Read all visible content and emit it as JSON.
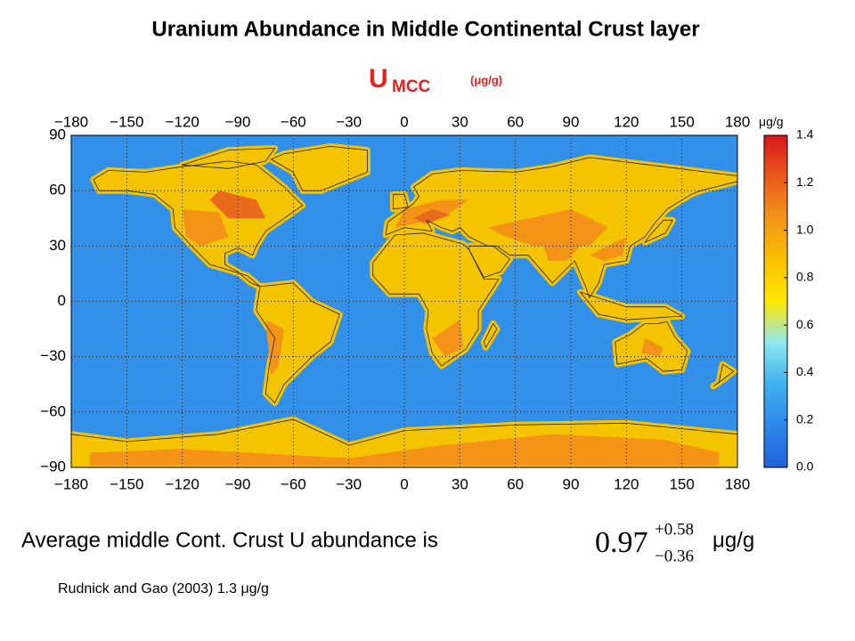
{
  "title": "Uranium Abundance in Middle Continental Crust layer",
  "map_label": {
    "symbol": "U",
    "subscript": "MCC",
    "unit": "(μg/g)"
  },
  "chart_data": {
    "type": "heatmap",
    "xlim": [
      -180,
      180
    ],
    "ylim": [
      -90,
      90
    ],
    "xticks": [
      {
        "value": -180,
        "label": "−180"
      },
      {
        "value": -150,
        "label": "−150"
      },
      {
        "value": -120,
        "label": "−120"
      },
      {
        "value": -90,
        "label": "−90"
      },
      {
        "value": -60,
        "label": "−60"
      },
      {
        "value": -30,
        "label": "−30"
      },
      0,
      30,
      60,
      90,
      120,
      150,
      180
    ],
    "yticks": [
      {
        "value": -90,
        "label": "−90"
      },
      {
        "value": -60,
        "label": "−60"
      },
      {
        "value": -30,
        "label": "−30"
      },
      0,
      30,
      60,
      90
    ],
    "grid": true,
    "colorbar": {
      "label": "μg/g",
      "lim": [
        0,
        1.4
      ],
      "ticks": [
        {
          "value": 0,
          "label": "0.0"
        },
        0.2,
        0.4,
        0.6,
        0.8,
        {
          "value": 1,
          "label": "1.0"
        },
        1.2,
        1.4
      ],
      "colors": [
        "#1e62d8",
        "#2f86ea",
        "#3fb0ee",
        "#8fe6f0",
        "#ffe800",
        "#f9c000",
        "#f39419",
        "#ea5a1c",
        "#d8141c"
      ]
    }
  },
  "statement": {
    "text": "Average middle Cont. Crust U abundance is",
    "value": 0.97,
    "upper_error": "+0.58",
    "lower_error": "−0.36",
    "unit": "μg/g"
  },
  "reference": "Rudnick and Gao (2003) 1.3 μg/g"
}
